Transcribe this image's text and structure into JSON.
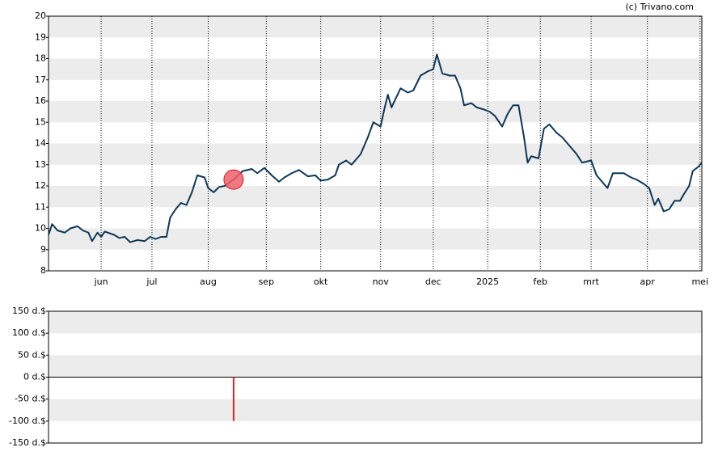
{
  "chart_data": [
    {
      "type": "line",
      "credit": "(c) Trivano.com",
      "color": "#0d3656",
      "banded": true,
      "xlim": [
        0,
        360
      ],
      "ylim": [
        8,
        20
      ],
      "yticks": [
        8,
        9,
        10,
        11,
        12,
        13,
        14,
        15,
        16,
        17,
        18,
        19,
        20
      ],
      "xticks": [
        {
          "value": 29,
          "label": "jun"
        },
        {
          "value": 57,
          "label": "jul"
        },
        {
          "value": 88,
          "label": "aug"
        },
        {
          "value": 120,
          "label": "sep"
        },
        {
          "value": 150,
          "label": "okt"
        },
        {
          "value": 183,
          "label": "nov"
        },
        {
          "value": 212,
          "label": "dec"
        },
        {
          "value": 242,
          "label": "2025"
        },
        {
          "value": 271,
          "label": "feb"
        },
        {
          "value": 299,
          "label": "mrt"
        },
        {
          "value": 330,
          "label": "apr"
        },
        {
          "value": 359,
          "label": "mei"
        }
      ],
      "x": [
        0,
        2,
        5,
        9,
        12,
        16,
        19,
        22,
        24,
        27,
        29,
        31,
        36,
        39,
        42,
        45,
        49,
        53,
        56,
        59,
        62,
        65,
        67,
        70,
        73,
        76,
        79,
        82,
        86,
        88,
        91,
        94,
        97,
        102,
        107,
        112,
        115,
        119,
        123,
        127,
        130,
        134,
        138,
        143,
        147,
        150,
        154,
        158,
        160,
        164,
        167,
        172,
        176,
        179,
        183,
        185,
        187,
        189,
        194,
        198,
        201,
        205,
        209,
        212,
        214,
        217,
        221,
        224,
        227,
        229,
        233,
        236,
        240,
        243,
        246,
        250,
        253,
        256,
        259,
        262,
        264,
        266,
        270,
        273,
        276,
        280,
        283,
        287,
        291,
        294,
        299,
        302,
        305,
        308,
        311,
        314,
        317,
        321,
        324,
        328,
        331,
        334,
        336,
        339,
        342,
        345,
        348,
        350,
        353,
        355,
        358,
        360
      ],
      "values": [
        9.7,
        10.2,
        9.9,
        9.8,
        10.0,
        10.1,
        9.9,
        9.8,
        9.4,
        9.8,
        9.6,
        9.85,
        9.7,
        9.55,
        9.6,
        9.35,
        9.45,
        9.4,
        9.6,
        9.5,
        9.6,
        9.6,
        10.5,
        10.9,
        11.2,
        11.1,
        11.7,
        12.5,
        12.4,
        11.9,
        11.7,
        11.95,
        12.0,
        12.3,
        12.7,
        12.8,
        12.6,
        12.85,
        12.5,
        12.2,
        12.4,
        12.6,
        12.75,
        12.45,
        12.5,
        12.25,
        12.3,
        12.5,
        13.0,
        13.2,
        13.0,
        13.5,
        14.3,
        15.0,
        14.8,
        15.6,
        16.3,
        15.7,
        16.6,
        16.4,
        16.5,
        17.2,
        17.4,
        17.5,
        18.2,
        17.3,
        17.2,
        17.2,
        16.6,
        15.8,
        15.9,
        15.7,
        15.6,
        15.5,
        15.3,
        14.8,
        15.4,
        15.8,
        15.8,
        14.3,
        13.1,
        13.4,
        13.3,
        14.7,
        14.9,
        14.5,
        14.3,
        13.9,
        13.5,
        13.1,
        13.2,
        12.5,
        12.2,
        11.9,
        12.6,
        12.6,
        12.6,
        12.4,
        12.3,
        12.1,
        11.9,
        11.1,
        11.4,
        10.8,
        10.9,
        11.3,
        11.3,
        11.6,
        12.0,
        12.7,
        12.9,
        13.1
      ],
      "marker": {
        "x": 102,
        "y": 12.3,
        "color": "#f0606a"
      }
    },
    {
      "type": "bar",
      "color": "#e0202a",
      "banded": true,
      "xlim": [
        0,
        360
      ],
      "ylim": [
        -150,
        150
      ],
      "yticks": [
        {
          "value": -150,
          "label": "-150 d.$"
        },
        {
          "value": -100,
          "label": "-100 d.$"
        },
        {
          "value": -50,
          "label": "-50 d.$"
        },
        {
          "value": 0,
          "label": "0 d.$"
        },
        {
          "value": 50,
          "label": "50 d.$"
        },
        {
          "value": 100,
          "label": "100 d.$"
        },
        {
          "value": 150,
          "label": "150 d.$"
        }
      ],
      "x": [
        102
      ],
      "values": [
        -100
      ]
    }
  ]
}
